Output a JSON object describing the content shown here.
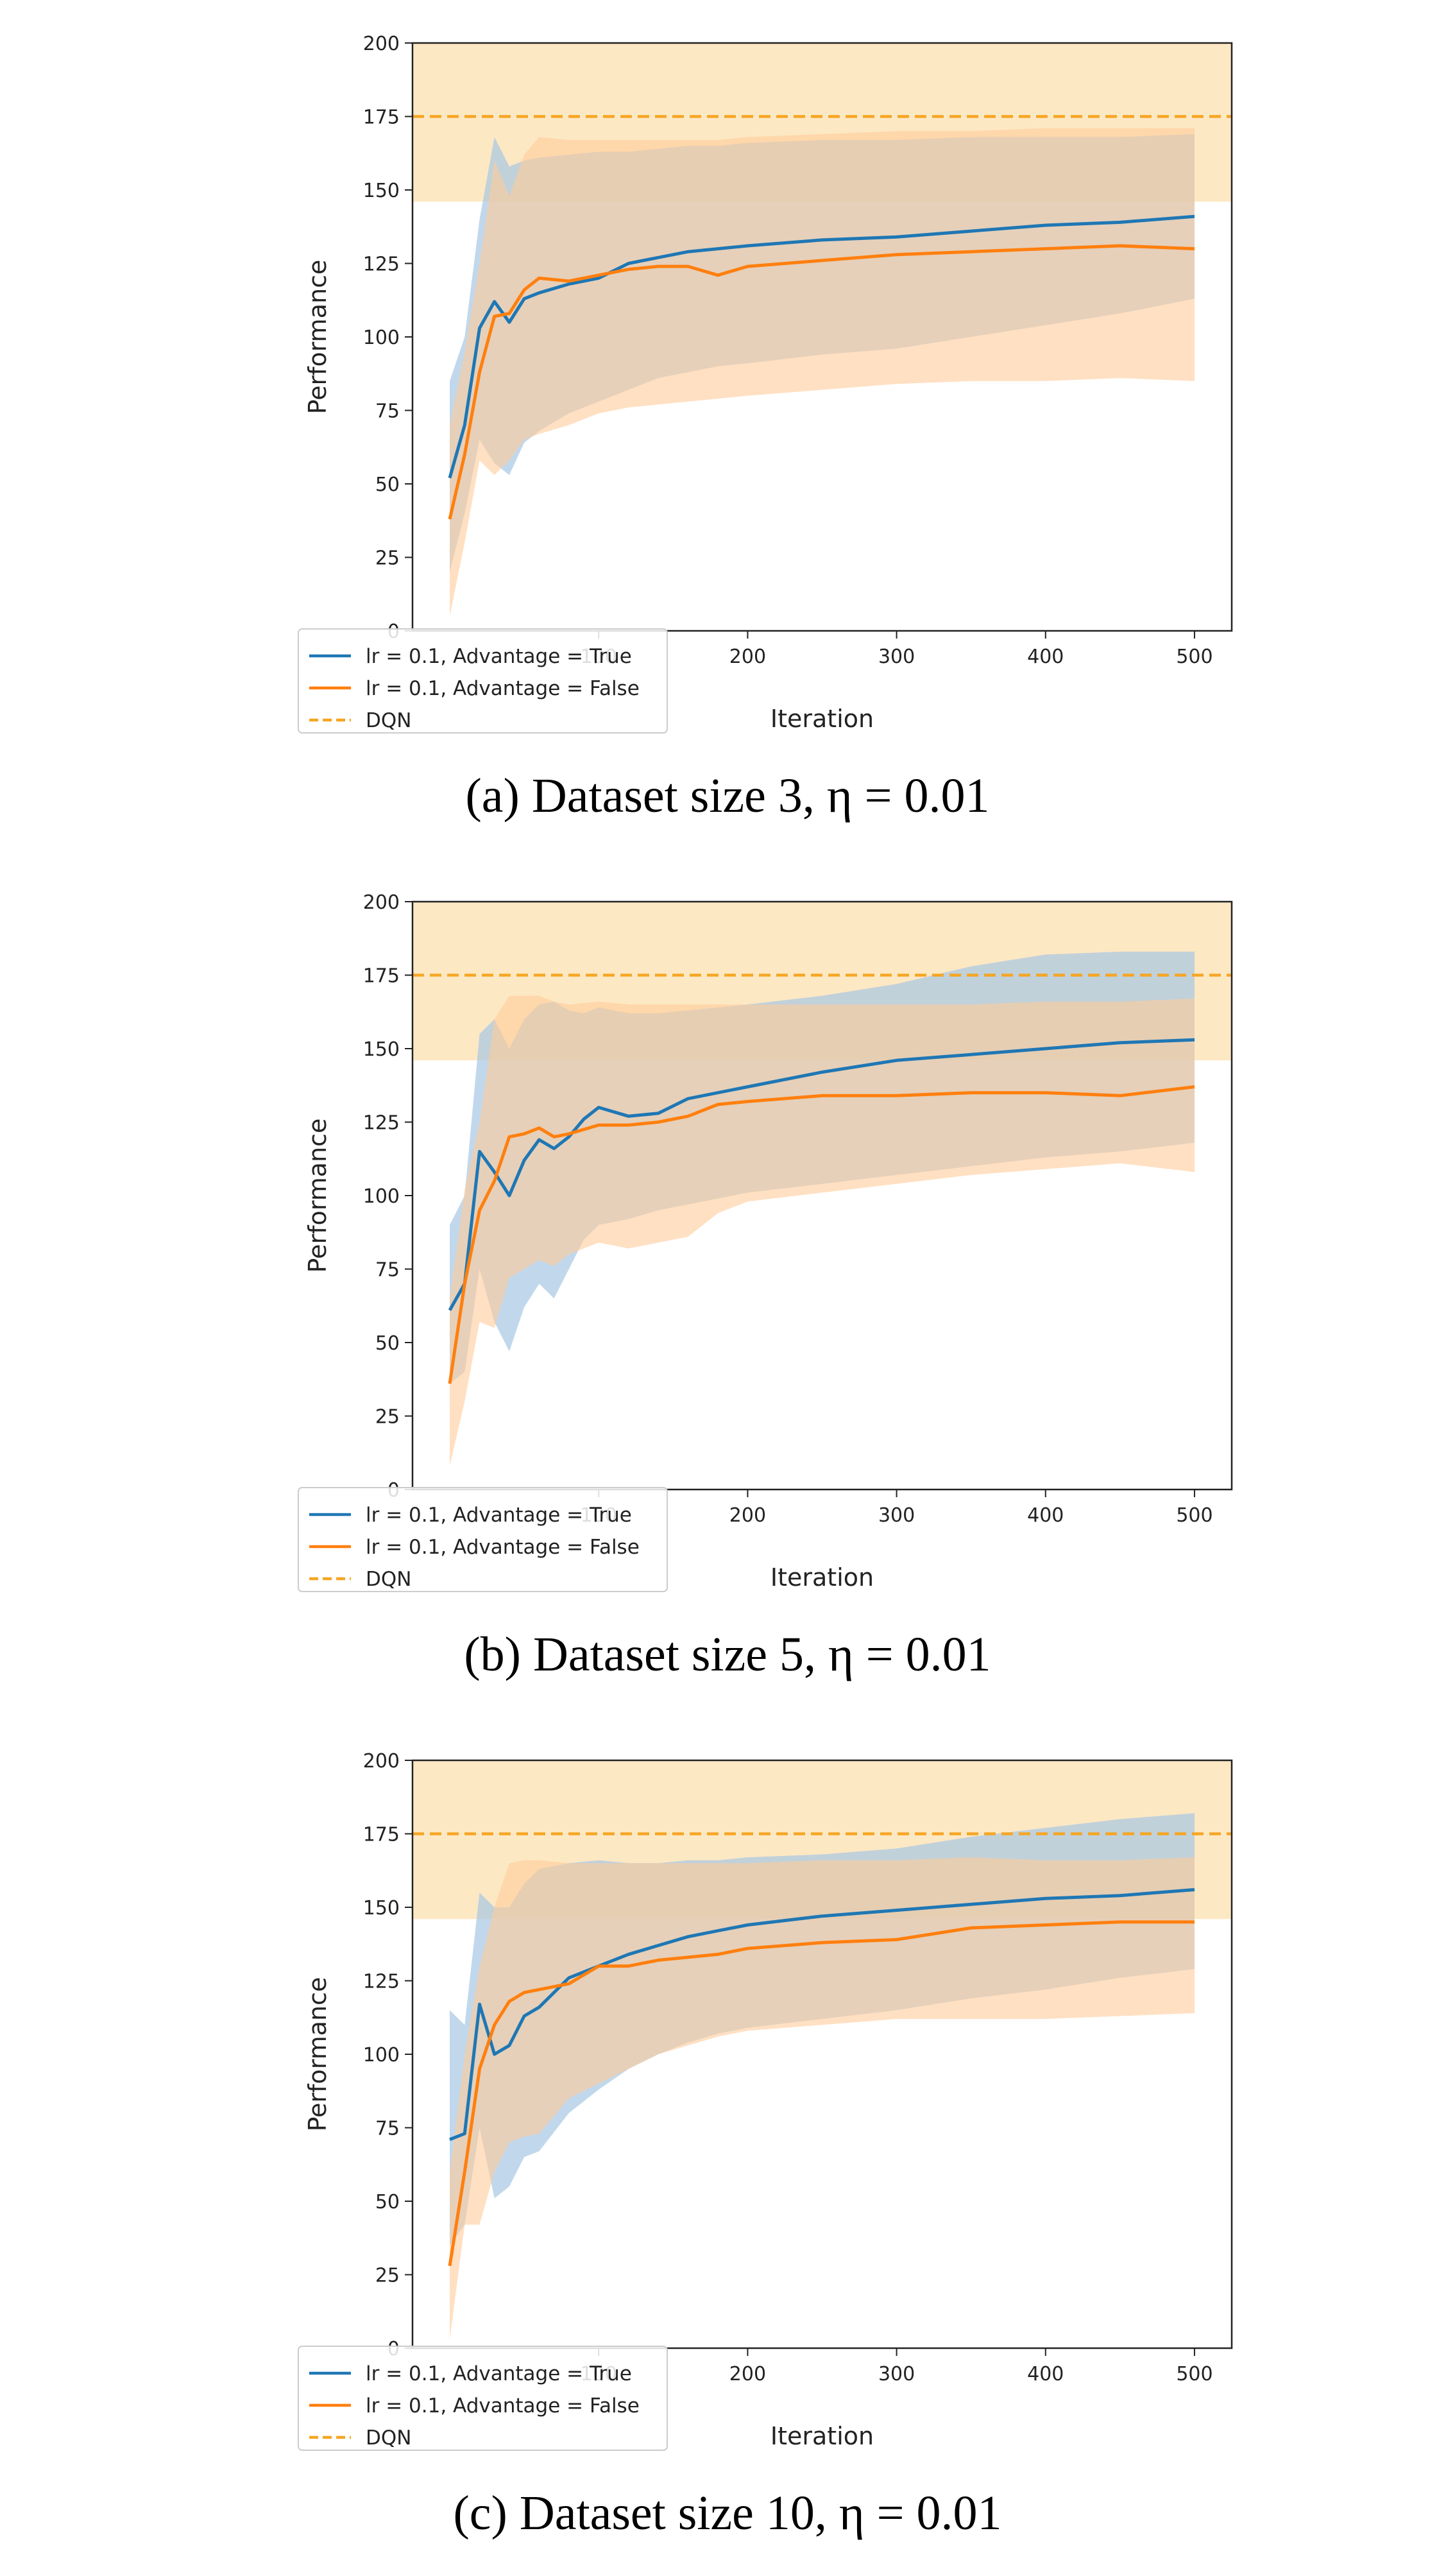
{
  "figure": {
    "panels": [
      {
        "caption": "(a) Dataset size 3, η = 0.01"
      },
      {
        "caption": "(b) Dataset size 5, η = 0.01"
      },
      {
        "caption": "(c) Dataset size 10, η = 0.01"
      }
    ]
  },
  "chart_data": [
    {
      "type": "line",
      "caption": "(a) Dataset size 3, η = 0.01",
      "xlabel": "Iteration",
      "ylabel": "Performance",
      "xlim": [
        -25,
        525
      ],
      "ylim": [
        0,
        200
      ],
      "xticks": [
        100,
        200,
        300,
        400,
        500
      ],
      "yticks": [
        0,
        25,
        50,
        75,
        100,
        125,
        150,
        175,
        200
      ],
      "grid": false,
      "legend_position": "bottom-left",
      "legend": [
        "lr = 0.1, Advantage = True",
        "lr = 0.1, Advantage = False",
        "DQN"
      ],
      "dqn": {
        "name": "DQN",
        "value": 175,
        "band": [
          146,
          200
        ],
        "color": "#f6a623",
        "band_color": "#fde8c4"
      },
      "series": [
        {
          "name": "lr = 0.1, Advantage = True",
          "color": "#1f77b4",
          "fill_color": "#a6c8e4",
          "x": [
            0,
            10,
            20,
            30,
            40,
            50,
            60,
            80,
            100,
            120,
            140,
            160,
            180,
            200,
            250,
            300,
            350,
            400,
            450,
            500
          ],
          "mean": [
            52,
            70,
            103,
            112,
            105,
            113,
            115,
            118,
            120,
            125,
            127,
            129,
            130,
            131,
            133,
            134,
            136,
            138,
            139,
            141
          ],
          "upper": [
            85,
            100,
            140,
            168,
            158,
            160,
            161,
            162,
            163,
            163,
            164,
            165,
            165,
            166,
            167,
            167,
            168,
            168,
            168,
            169
          ],
          "lower": [
            20,
            40,
            65,
            57,
            53,
            64,
            68,
            74,
            78,
            82,
            86,
            88,
            90,
            91,
            94,
            96,
            100,
            104,
            108,
            113
          ]
        },
        {
          "name": "lr = 0.1, Advantage = False",
          "color": "#ff7f0e",
          "fill_color": "#ffcc99",
          "x": [
            0,
            10,
            20,
            30,
            40,
            50,
            60,
            80,
            100,
            120,
            140,
            160,
            180,
            200,
            250,
            300,
            350,
            400,
            450,
            500
          ],
          "mean": [
            38,
            60,
            88,
            107,
            108,
            116,
            120,
            119,
            121,
            123,
            124,
            124,
            121,
            124,
            126,
            128,
            129,
            130,
            131,
            130
          ],
          "upper": [
            70,
            95,
            125,
            160,
            148,
            162,
            168,
            167,
            167,
            167,
            167,
            167,
            167,
            168,
            169,
            170,
            170,
            171,
            171,
            171
          ],
          "lower": [
            5,
            30,
            58,
            53,
            58,
            65,
            67,
            70,
            74,
            76,
            77,
            78,
            79,
            80,
            82,
            84,
            85,
            85,
            86,
            85
          ]
        }
      ]
    },
    {
      "type": "line",
      "caption": "(b) Dataset size 5, η = 0.01",
      "xlabel": "Iteration",
      "ylabel": "Performance",
      "xlim": [
        -25,
        525
      ],
      "ylim": [
        0,
        200
      ],
      "xticks": [
        100,
        200,
        300,
        400,
        500
      ],
      "yticks": [
        0,
        25,
        50,
        75,
        100,
        125,
        150,
        175,
        200
      ],
      "grid": false,
      "legend_position": "bottom-left",
      "legend": [
        "lr = 0.1, Advantage = True",
        "lr = 0.1, Advantage = False",
        "DQN"
      ],
      "dqn": {
        "name": "DQN",
        "value": 175,
        "band": [
          146,
          200
        ],
        "color": "#f6a623",
        "band_color": "#fde8c4"
      },
      "series": [
        {
          "name": "lr = 0.1, Advantage = True",
          "color": "#1f77b4",
          "fill_color": "#a6c8e4",
          "x": [
            0,
            10,
            20,
            30,
            40,
            50,
            60,
            70,
            80,
            90,
            100,
            120,
            140,
            160,
            180,
            200,
            250,
            300,
            350,
            400,
            450,
            500
          ],
          "mean": [
            61,
            70,
            115,
            108,
            100,
            112,
            119,
            116,
            120,
            126,
            130,
            127,
            128,
            133,
            135,
            137,
            142,
            146,
            148,
            150,
            152,
            153
          ],
          "upper": [
            90,
            100,
            155,
            160,
            150,
            160,
            165,
            166,
            163,
            162,
            164,
            162,
            162,
            163,
            164,
            165,
            168,
            172,
            178,
            182,
            183,
            183
          ],
          "lower": [
            36,
            40,
            75,
            57,
            47,
            62,
            70,
            65,
            75,
            85,
            90,
            92,
            95,
            97,
            99,
            101,
            104,
            107,
            110,
            113,
            115,
            118
          ]
        },
        {
          "name": "lr = 0.1, Advantage = False",
          "color": "#ff7f0e",
          "fill_color": "#ffcc99",
          "x": [
            0,
            10,
            20,
            30,
            40,
            50,
            60,
            70,
            80,
            100,
            120,
            140,
            160,
            180,
            200,
            250,
            300,
            350,
            400,
            450,
            500
          ],
          "mean": [
            36,
            70,
            95,
            105,
            120,
            121,
            123,
            120,
            121,
            124,
            124,
            125,
            127,
            131,
            132,
            134,
            134,
            135,
            135,
            134,
            137
          ],
          "upper": [
            65,
            102,
            125,
            160,
            168,
            168,
            168,
            166,
            165,
            166,
            165,
            165,
            165,
            165,
            165,
            165,
            165,
            165,
            166,
            166,
            167
          ],
          "lower": [
            8,
            30,
            57,
            55,
            72,
            75,
            78,
            76,
            80,
            84,
            82,
            84,
            86,
            94,
            98,
            101,
            104,
            107,
            109,
            111,
            108
          ]
        }
      ]
    },
    {
      "type": "line",
      "caption": "(c) Dataset size 10, η = 0.01",
      "xlabel": "Iteration",
      "ylabel": "Performance",
      "xlim": [
        -25,
        525
      ],
      "ylim": [
        0,
        200
      ],
      "xticks": [
        100,
        200,
        300,
        400,
        500
      ],
      "yticks": [
        0,
        25,
        50,
        75,
        100,
        125,
        150,
        175,
        200
      ],
      "grid": false,
      "legend_position": "bottom-left",
      "legend": [
        "lr = 0.1, Advantage = True",
        "lr = 0.1, Advantage = False",
        "DQN"
      ],
      "dqn": {
        "name": "DQN",
        "value": 175,
        "band": [
          146,
          200
        ],
        "color": "#f6a623",
        "band_color": "#fde8c4"
      },
      "series": [
        {
          "name": "lr = 0.1, Advantage = True",
          "color": "#1f77b4",
          "fill_color": "#a6c8e4",
          "x": [
            0,
            10,
            20,
            30,
            40,
            50,
            60,
            80,
            100,
            120,
            140,
            160,
            180,
            200,
            250,
            300,
            350,
            400,
            450,
            500
          ],
          "mean": [
            71,
            73,
            117,
            100,
            103,
            113,
            116,
            126,
            130,
            134,
            137,
            140,
            142,
            144,
            147,
            149,
            151,
            153,
            154,
            156
          ],
          "upper": [
            115,
            110,
            155,
            150,
            150,
            158,
            163,
            165,
            166,
            165,
            165,
            166,
            166,
            167,
            168,
            170,
            174,
            177,
            180,
            182
          ],
          "lower": [
            35,
            42,
            75,
            51,
            55,
            65,
            67,
            80,
            88,
            95,
            100,
            104,
            107,
            109,
            112,
            115,
            119,
            122,
            126,
            129
          ]
        },
        {
          "name": "lr = 0.1, Advantage = False",
          "color": "#ff7f0e",
          "fill_color": "#ffcc99",
          "x": [
            0,
            10,
            20,
            30,
            40,
            50,
            60,
            80,
            100,
            120,
            140,
            160,
            180,
            200,
            250,
            300,
            350,
            400,
            450,
            500
          ],
          "mean": [
            28,
            60,
            95,
            110,
            118,
            121,
            122,
            124,
            130,
            130,
            132,
            133,
            134,
            136,
            138,
            139,
            143,
            144,
            145,
            145
          ],
          "upper": [
            60,
            100,
            130,
            150,
            165,
            166,
            166,
            165,
            165,
            165,
            165,
            165,
            165,
            165,
            166,
            166,
            167,
            166,
            166,
            167
          ],
          "lower": [
            3,
            42,
            42,
            60,
            70,
            72,
            73,
            85,
            90,
            95,
            100,
            103,
            106,
            108,
            110,
            112,
            112,
            112,
            113,
            114
          ]
        }
      ]
    }
  ]
}
